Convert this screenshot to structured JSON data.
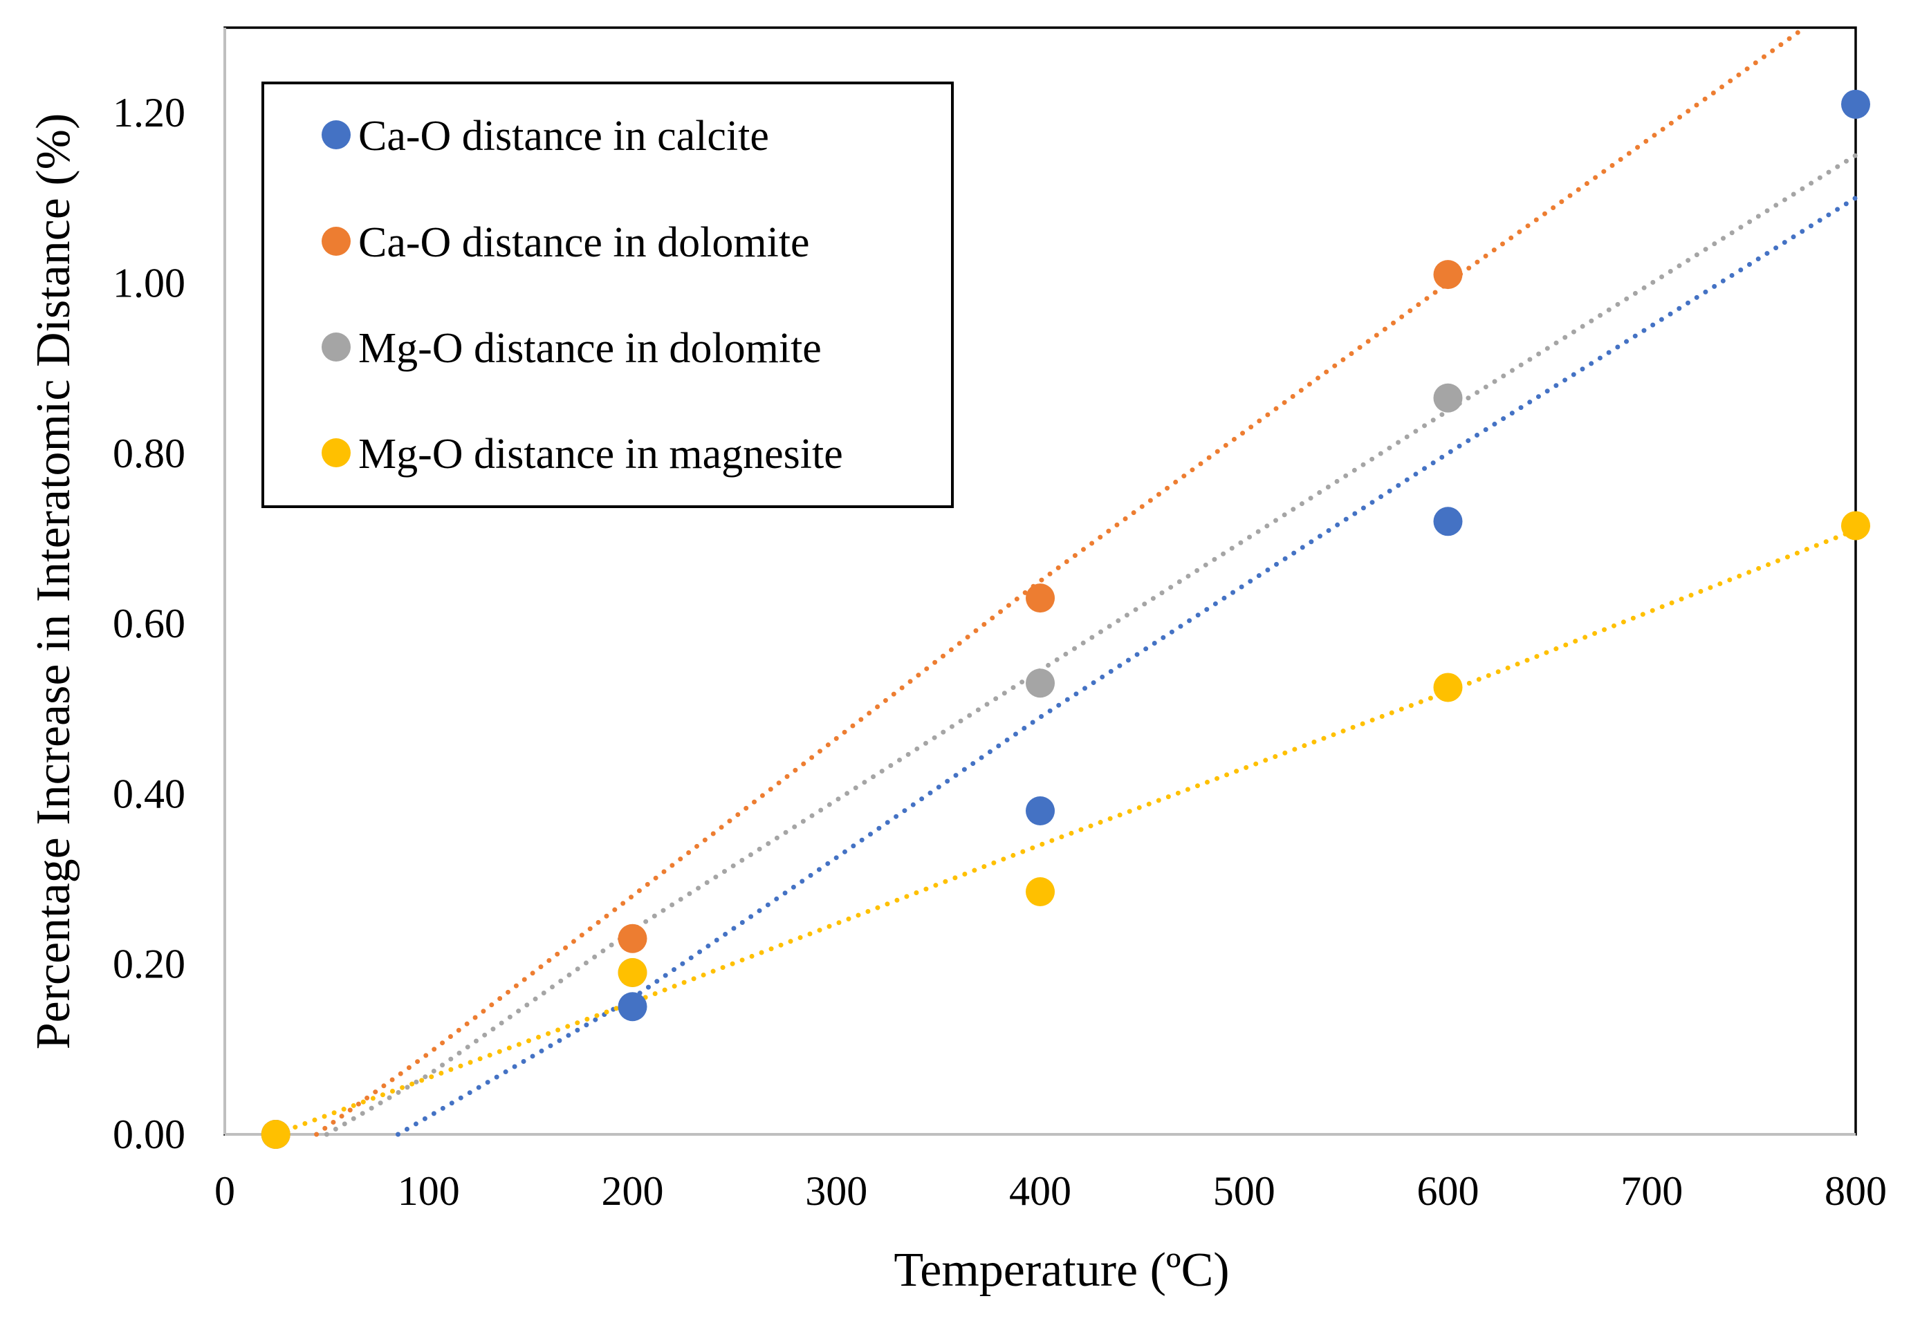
{
  "chart_data": {
    "type": "scatter",
    "title": "",
    "xlabel": "Temperature (ºC)",
    "ylabel": "Percentage Increase in Interatomic Distance (%)",
    "xlim": [
      0,
      800
    ],
    "ylim": [
      0,
      1.3
    ],
    "x_ticks": [
      "0",
      "100",
      "200",
      "300",
      "400",
      "500",
      "600",
      "700",
      "800"
    ],
    "x_tick_values": [
      0,
      100,
      200,
      300,
      400,
      500,
      600,
      700,
      800
    ],
    "y_ticks": [
      "0.00",
      "0.20",
      "0.40",
      "0.60",
      "0.80",
      "1.00",
      "1.20"
    ],
    "y_tick_values": [
      0,
      0.2,
      0.4,
      0.6,
      0.8,
      1.0,
      1.2
    ],
    "grid": false,
    "legend_position": "top-left",
    "series": [
      {
        "name": "Ca-O distance in calcite",
        "color": "#4472C4",
        "x": [
          25,
          200,
          400,
          600,
          800
        ],
        "y": [
          0.0,
          0.15,
          0.38,
          0.72,
          1.21
        ],
        "trendline": {
          "type": "polynomial",
          "points": [
            [
              85,
              0.0
            ],
            [
              200,
              0.16
            ],
            [
              400,
              0.49
            ],
            [
              600,
              0.8
            ],
            [
              800,
              1.1
            ]
          ]
        }
      },
      {
        "name": "Ca-O distance in dolomite",
        "color": "#ED7D31",
        "x": [
          25,
          200,
          400,
          600
        ],
        "y": [
          0.0,
          0.23,
          0.63,
          1.01
        ],
        "trendline": {
          "type": "polynomial",
          "points": [
            [
              45,
              0.0
            ],
            [
              100,
              0.095
            ],
            [
              200,
              0.28
            ],
            [
              400,
              0.65
            ],
            [
              600,
              1.0
            ],
            [
              775,
              1.3
            ]
          ]
        }
      },
      {
        "name": "Mg-O distance in dolomite",
        "color": "#A5A5A5",
        "x": [
          25,
          200,
          400,
          600
        ],
        "y": [
          0.0,
          0.19,
          0.53,
          0.865
        ],
        "trendline": {
          "type": "polynomial",
          "points": [
            [
              50,
              0.0
            ],
            [
              100,
              0.07
            ],
            [
              200,
              0.24
            ],
            [
              400,
              0.545
            ],
            [
              600,
              0.85
            ],
            [
              800,
              1.15
            ]
          ]
        }
      },
      {
        "name": "Mg-O distance in magnesite",
        "color": "#FFC000",
        "x": [
          25,
          200,
          400,
          600,
          800
        ],
        "y": [
          0.0,
          0.19,
          0.285,
          0.525,
          0.715
        ],
        "trendline": {
          "type": "polynomial",
          "points": [
            [
              25,
              0.0
            ],
            [
              200,
              0.155
            ],
            [
              400,
              0.34
            ],
            [
              600,
              0.52
            ],
            [
              800,
              0.71
            ]
          ]
        }
      }
    ]
  }
}
